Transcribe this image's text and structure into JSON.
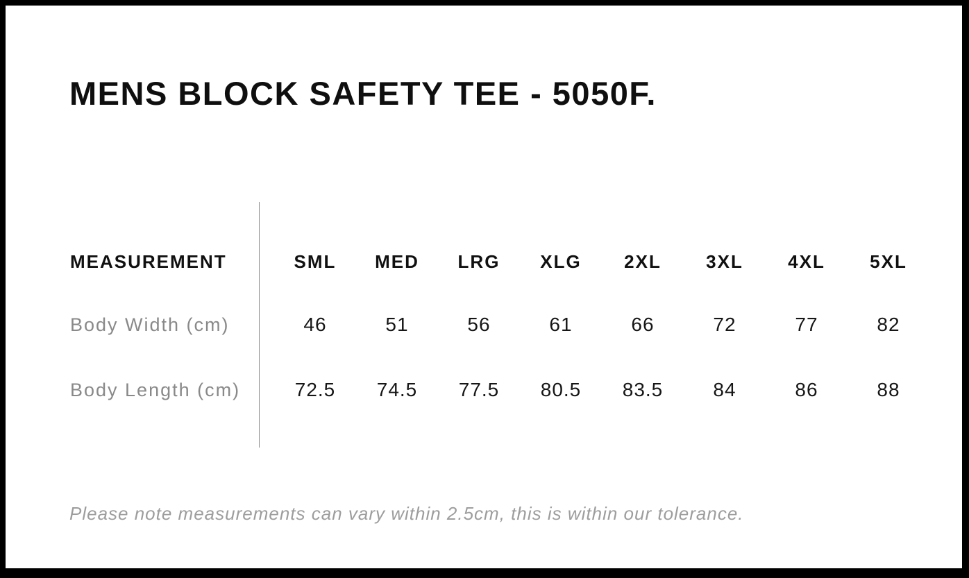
{
  "title": "MENS BLOCK SAFETY TEE - 5050F.",
  "note": "Please note measurements can vary within 2.5cm, this is within our tolerance.",
  "chart_data": {
    "type": "table",
    "title": "MENS BLOCK SAFETY TEE - 5050F.",
    "row_header_label": "MEASUREMENT",
    "size_columns": [
      "SML",
      "MED",
      "LRG",
      "XLG",
      "2XL",
      "3XL",
      "4XL",
      "5XL"
    ],
    "rows": [
      {
        "label": "Body Width (cm)",
        "values": [
          46,
          51,
          56,
          61,
          66,
          72,
          77,
          82
        ]
      },
      {
        "label": "Body Length (cm)",
        "values": [
          72.5,
          74.5,
          77.5,
          80.5,
          83.5,
          84,
          86,
          88
        ]
      }
    ],
    "note": "Please note measurements can vary within 2.5cm, this is within our tolerance.",
    "layout_hints": {
      "divider": "vertical line between measurement labels and size columns",
      "grid": "off"
    }
  },
  "colors": {
    "frame": "#000000",
    "background": "#ffffff",
    "heading_text": "#0f0f0f",
    "value_text": "#161616",
    "muted_label": "#898989",
    "note_text": "#9d9d9d",
    "divider": "#8f8f8f"
  }
}
